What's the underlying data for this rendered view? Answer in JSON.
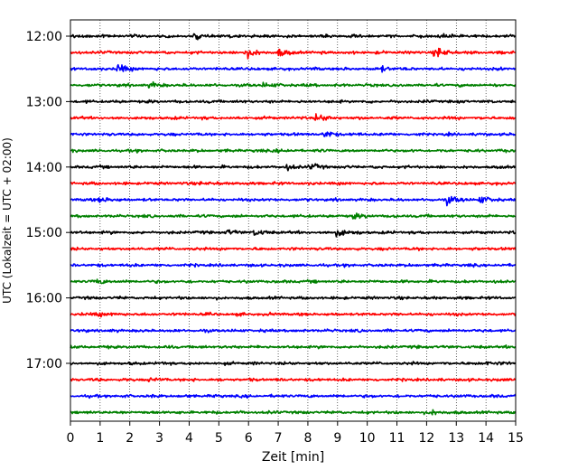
{
  "chart_data": {
    "type": "line",
    "title": "",
    "xlabel": "Zeit  [min]",
    "ylabel": "UTC (Lokalzeit = UTC + 02:00)",
    "xlim": [
      0,
      15
    ],
    "x_ticks": [
      "0",
      "1",
      "2",
      "3",
      "4",
      "5",
      "6",
      "7",
      "8",
      "9",
      "10",
      "11",
      "12",
      "13",
      "14",
      "15"
    ],
    "y_ticks": [
      "12:00",
      "13:00",
      "14:00",
      "15:00",
      "16:00",
      "17:00"
    ],
    "grid_x": true,
    "grid_style": "dotted",
    "trace_interval_min": 15,
    "trace_colors": [
      "#000000",
      "#ff0000",
      "#0000ff",
      "#008000"
    ],
    "traces": [
      {
        "start": "12:00",
        "color": "#000000",
        "events": [
          {
            "t": 4.2,
            "amp": 0.25
          },
          {
            "t": 12.6,
            "amp": 0.2
          }
        ]
      },
      {
        "start": "12:15",
        "color": "#ff0000",
        "events": [
          {
            "t": 5.9,
            "amp": 0.65
          },
          {
            "t": 7.0,
            "amp": 0.5
          },
          {
            "t": 12.3,
            "amp": 0.7
          }
        ]
      },
      {
        "start": "12:30",
        "color": "#0000ff",
        "events": [
          {
            "t": 1.6,
            "amp": 0.55
          },
          {
            "t": 10.5,
            "amp": 0.25
          }
        ]
      },
      {
        "start": "12:45",
        "color": "#008000",
        "events": [
          {
            "t": 2.7,
            "amp": 0.3
          },
          {
            "t": 6.5,
            "amp": 0.3
          }
        ]
      },
      {
        "start": "13:00",
        "color": "#000000",
        "events": []
      },
      {
        "start": "13:15",
        "color": "#ff0000",
        "events": [
          {
            "t": 8.3,
            "amp": 0.55
          }
        ]
      },
      {
        "start": "13:30",
        "color": "#0000ff",
        "events": [
          {
            "t": 8.6,
            "amp": 0.4
          }
        ]
      },
      {
        "start": "13:45",
        "color": "#008000",
        "events": [
          {
            "t": 6.9,
            "amp": 0.15
          }
        ]
      },
      {
        "start": "14:00",
        "color": "#000000",
        "events": [
          {
            "t": 7.3,
            "amp": 0.3
          },
          {
            "t": 8.1,
            "amp": 0.3
          }
        ]
      },
      {
        "start": "14:15",
        "color": "#ff0000",
        "events": [
          {
            "t": 4.3,
            "amp": 0.15
          }
        ]
      },
      {
        "start": "14:30",
        "color": "#0000ff",
        "events": [
          {
            "t": 1.0,
            "amp": 0.35
          },
          {
            "t": 12.7,
            "amp": 0.55
          },
          {
            "t": 13.8,
            "amp": 0.45
          }
        ]
      },
      {
        "start": "14:45",
        "color": "#008000",
        "events": [
          {
            "t": 9.5,
            "amp": 0.3
          }
        ]
      },
      {
        "start": "15:00",
        "color": "#000000",
        "events": [
          {
            "t": 5.3,
            "amp": 0.25
          },
          {
            "t": 6.2,
            "amp": 0.35
          },
          {
            "t": 9.0,
            "amp": 0.55
          }
        ]
      },
      {
        "start": "15:15",
        "color": "#ff0000",
        "events": []
      },
      {
        "start": "15:30",
        "color": "#0000ff",
        "events": []
      },
      {
        "start": "15:45",
        "color": "#008000",
        "events": [
          {
            "t": 0.9,
            "amp": 0.3
          }
        ]
      },
      {
        "start": "16:00",
        "color": "#000000",
        "events": []
      },
      {
        "start": "16:15",
        "color": "#ff0000",
        "events": [
          {
            "t": 0.9,
            "amp": 0.3
          }
        ]
      },
      {
        "start": "16:30",
        "color": "#0000ff",
        "events": []
      },
      {
        "start": "16:45",
        "color": "#008000",
        "events": []
      },
      {
        "start": "17:00",
        "color": "#000000",
        "events": [
          {
            "t": 14.0,
            "amp": 0.2
          }
        ]
      },
      {
        "start": "17:15",
        "color": "#ff0000",
        "events": [
          {
            "t": 2.6,
            "amp": 0.2
          }
        ]
      },
      {
        "start": "17:30",
        "color": "#0000ff",
        "events": []
      },
      {
        "start": "17:45",
        "color": "#008000",
        "events": [
          {
            "t": 12.2,
            "amp": 0.25
          }
        ]
      }
    ]
  }
}
